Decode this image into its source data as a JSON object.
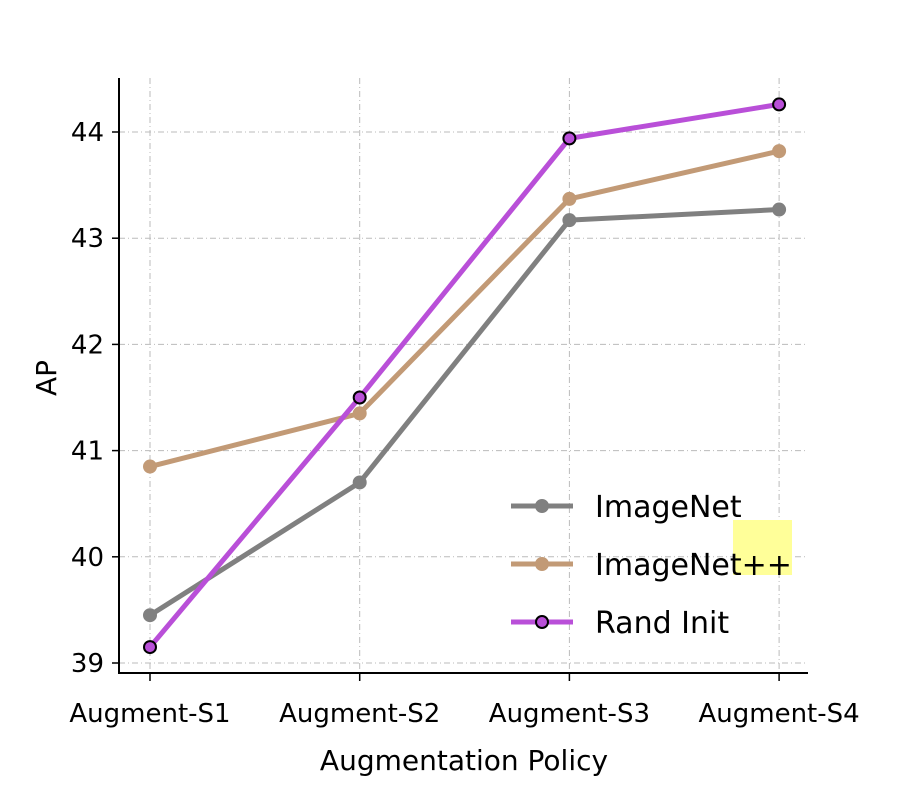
{
  "chart_data": {
    "type": "line",
    "title": "",
    "xlabel": "Augmentation Policy",
    "ylabel": "AP",
    "categories": [
      "Augment-S1",
      "Augment-S2",
      "Augment-S3",
      "Augment-S4"
    ],
    "yticks": [
      "39",
      "40",
      "41",
      "42",
      "43",
      "44"
    ],
    "ylim": [
      38.9,
      44.51
    ],
    "grid": true,
    "legend_position": "bottom-right",
    "series": [
      {
        "name": "ImageNet",
        "color": "#808080",
        "marker_edge": "#808080",
        "values": [
          39.45,
          40.7,
          43.17,
          43.27
        ]
      },
      {
        "name": "ImageNet++",
        "color": "#c29a76",
        "marker_edge": "#c29a76",
        "values": [
          40.85,
          41.35,
          43.37,
          43.82
        ]
      },
      {
        "name": "Rand Init",
        "color": "#b94fd8",
        "marker_edge": "#000000",
        "values": [
          39.15,
          41.5,
          43.94,
          44.26
        ]
      }
    ],
    "highlight_color": "#ffff99"
  }
}
